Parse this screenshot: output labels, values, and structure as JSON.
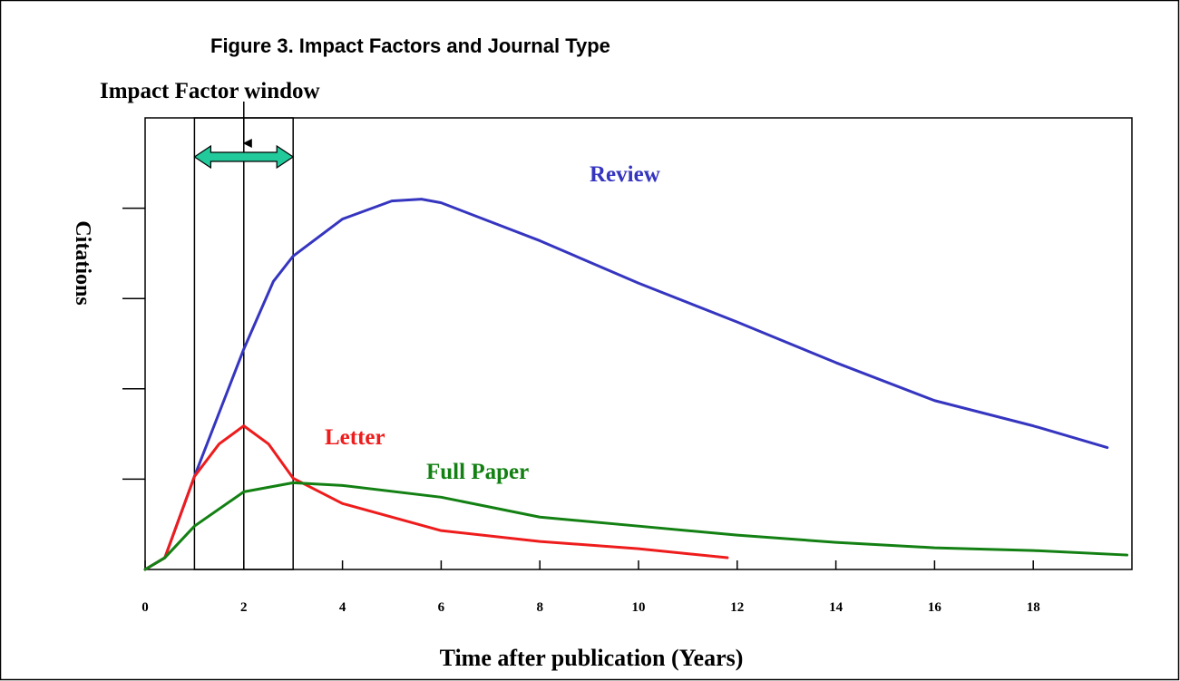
{
  "chart_data": {
    "type": "line",
    "title": "Figure 3. Impact Factors and Journal Type",
    "x_label": "Time after publication (Years)",
    "y_label": "Citations",
    "annotation": {
      "text": "Impact Factor window",
      "x_range": [
        1,
        3
      ],
      "x": 2
    },
    "series": [
      {
        "name": "Review",
        "color": "#3535c0",
        "x": [
          0,
          0.4,
          1,
          2,
          2.6,
          3,
          4,
          5,
          5.6,
          6,
          8,
          10,
          12,
          14,
          16,
          18,
          19.5
        ],
        "values": [
          0,
          0.13,
          1.03,
          2.44,
          3.19,
          3.47,
          3.88,
          4.08,
          4.1,
          4.06,
          3.64,
          3.17,
          2.74,
          2.29,
          1.87,
          1.59,
          1.35
        ]
      },
      {
        "name": "Letter",
        "color": "#ee1c1c",
        "x": [
          0,
          0.4,
          1,
          1.5,
          2,
          2.5,
          3,
          4,
          6,
          8,
          10,
          11.8
        ],
        "values": [
          0,
          0.13,
          1.03,
          1.39,
          1.59,
          1.39,
          1.01,
          0.73,
          0.43,
          0.31,
          0.23,
          0.13
        ]
      },
      {
        "name": "Full Paper",
        "color": "#138013",
        "x": [
          0,
          0.4,
          1,
          2,
          3,
          4,
          6,
          8,
          10,
          12,
          14,
          16,
          18,
          19.9
        ],
        "values": [
          0,
          0.13,
          0.48,
          0.86,
          0.96,
          0.93,
          0.8,
          0.58,
          0.48,
          0.38,
          0.3,
          0.24,
          0.21,
          0.16
        ]
      }
    ],
    "xlim": [
      0,
      20
    ],
    "xticks": [
      0,
      2,
      4,
      6,
      8,
      10,
      12,
      14,
      16,
      18
    ],
    "ylim": [
      0,
      5
    ],
    "yticks": [
      1,
      2,
      3,
      4
    ],
    "show_ytick_labels": false
  }
}
